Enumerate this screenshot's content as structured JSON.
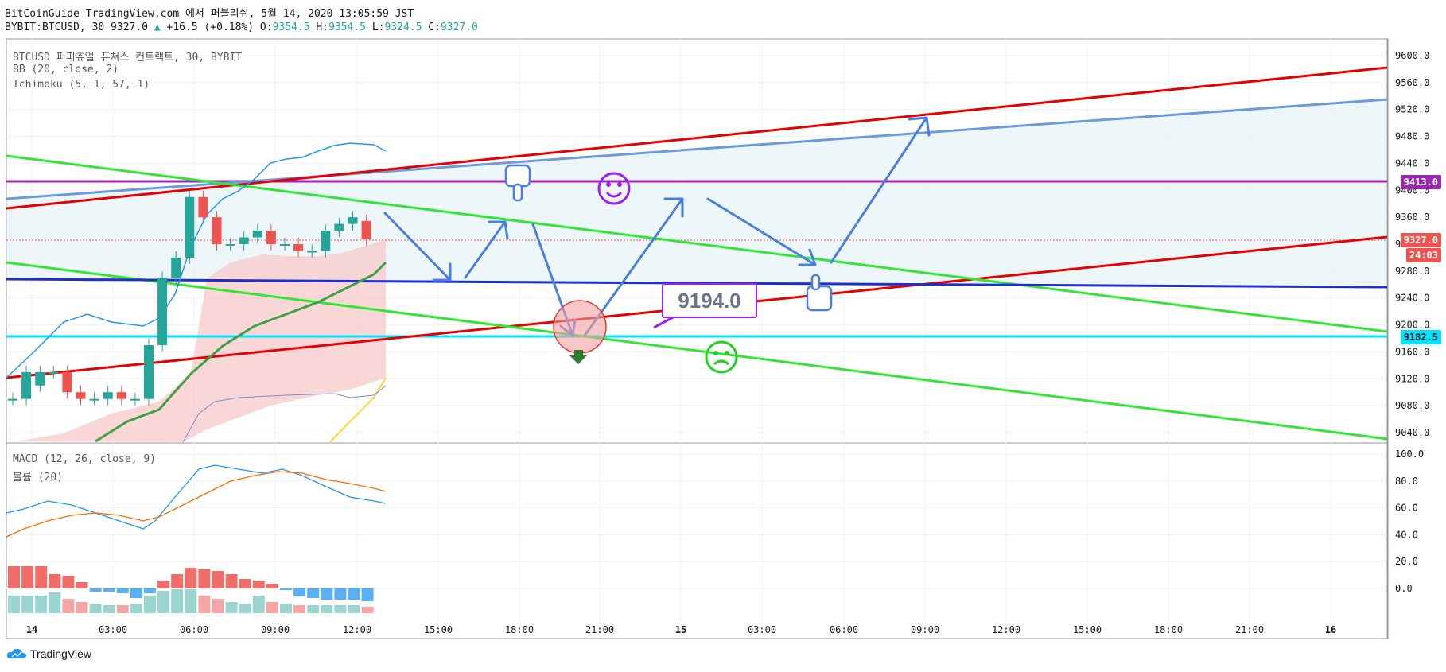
{
  "header": {
    "title": "BitCoinGuide TradingView.com 에서 퍼블리쉬, 5월 14, 2020 13:05:59 JST",
    "symbol": "BYBIT:BTCUSD, 30 9327.0",
    "change": "+16.5 (+0.18%)",
    "ohlc_labels": [
      "O:",
      "H:",
      "L:",
      "C:"
    ],
    "ohlc_values": [
      "9354.5",
      "9354.5",
      "9324.5",
      "9327.0"
    ]
  },
  "main_pane": {
    "legend": [
      "BTCUSD 퍼피츄얼 퓨쳐스 컨트랙트, 30, BYBIT",
      "BB (20, close, 2)",
      "Ichimoku (5, 1, 57, 1)"
    ],
    "price_axis": [
      "9600.0",
      "9560.0",
      "9520.0",
      "9480.0",
      "9440.0",
      "9400.0",
      "9360.0",
      "9320.0",
      "9280.0",
      "9240.0",
      "9200.0",
      "9160.0",
      "9120.0",
      "9080.0",
      "9040.0"
    ],
    "price_labels": {
      "resistance": "9413.0",
      "last": "9327.0",
      "countdown": "24:03",
      "support": "9182.5"
    },
    "annotation_box": "9194.0",
    "colors": {
      "up": "#26a69a",
      "down": "#ef5350",
      "resistance": "#9c27b0",
      "support": "#00e5ff",
      "red_line": "#e60000",
      "green_line": "#33e633",
      "blue_line": "#1e2ecf",
      "arrows": "#4a7fe0"
    }
  },
  "lower_pane": {
    "legend": [
      "MACD (12, 26, close, 9)",
      "볼륨 (20)"
    ],
    "axis": [
      "100.0",
      "80.0",
      "60.0",
      "40.0",
      "20.0",
      "0.0"
    ]
  },
  "time_axis": [
    "14",
    "03:00",
    "06:00",
    "09:00",
    "12:00",
    "15:00",
    "18:00",
    "21:00",
    "15",
    "03:00",
    "06:00",
    "09:00",
    "12:00",
    "15:00",
    "18:00",
    "21:00",
    "16"
  ],
  "footer": {
    "brand": "TradingView"
  },
  "chart_data": {
    "type": "candlestick",
    "title": "BTCUSD 퍼피츄얼 퓨쳐스 컨트랙트, 30, BYBIT",
    "interval": "30",
    "x": [
      "00:00",
      "00:30",
      "01:00",
      "01:30",
      "02:00",
      "02:30",
      "03:00",
      "03:30",
      "04:00",
      "04:30",
      "05:00",
      "05:30",
      "06:00",
      "06:30",
      "07:00",
      "07:30",
      "08:00",
      "08:30",
      "09:00",
      "09:30",
      "10:00",
      "10:30",
      "11:00",
      "11:30",
      "12:00",
      "12:30",
      "13:00"
    ],
    "open": [
      9090,
      9090,
      9110,
      9130,
      9130,
      9100,
      9090,
      9090,
      9100,
      9090,
      9090,
      9170,
      9270,
      9300,
      9390,
      9360,
      9320,
      9320,
      9330,
      9340,
      9320,
      9320,
      9310,
      9310,
      9340,
      9350,
      9354.5
    ],
    "close": [
      9090,
      9130,
      9130,
      9130,
      9100,
      9090,
      9090,
      9100,
      9090,
      9090,
      9170,
      9270,
      9300,
      9390,
      9360,
      9320,
      9320,
      9330,
      9340,
      9320,
      9320,
      9310,
      9310,
      9340,
      9350,
      9360,
      9327
    ],
    "ylim": [
      9020,
      9620
    ],
    "levels": {
      "resistance": 9413.0,
      "support": 9182.5,
      "last": 9327.0
    },
    "macd_axis_range": [
      -20,
      100
    ]
  }
}
